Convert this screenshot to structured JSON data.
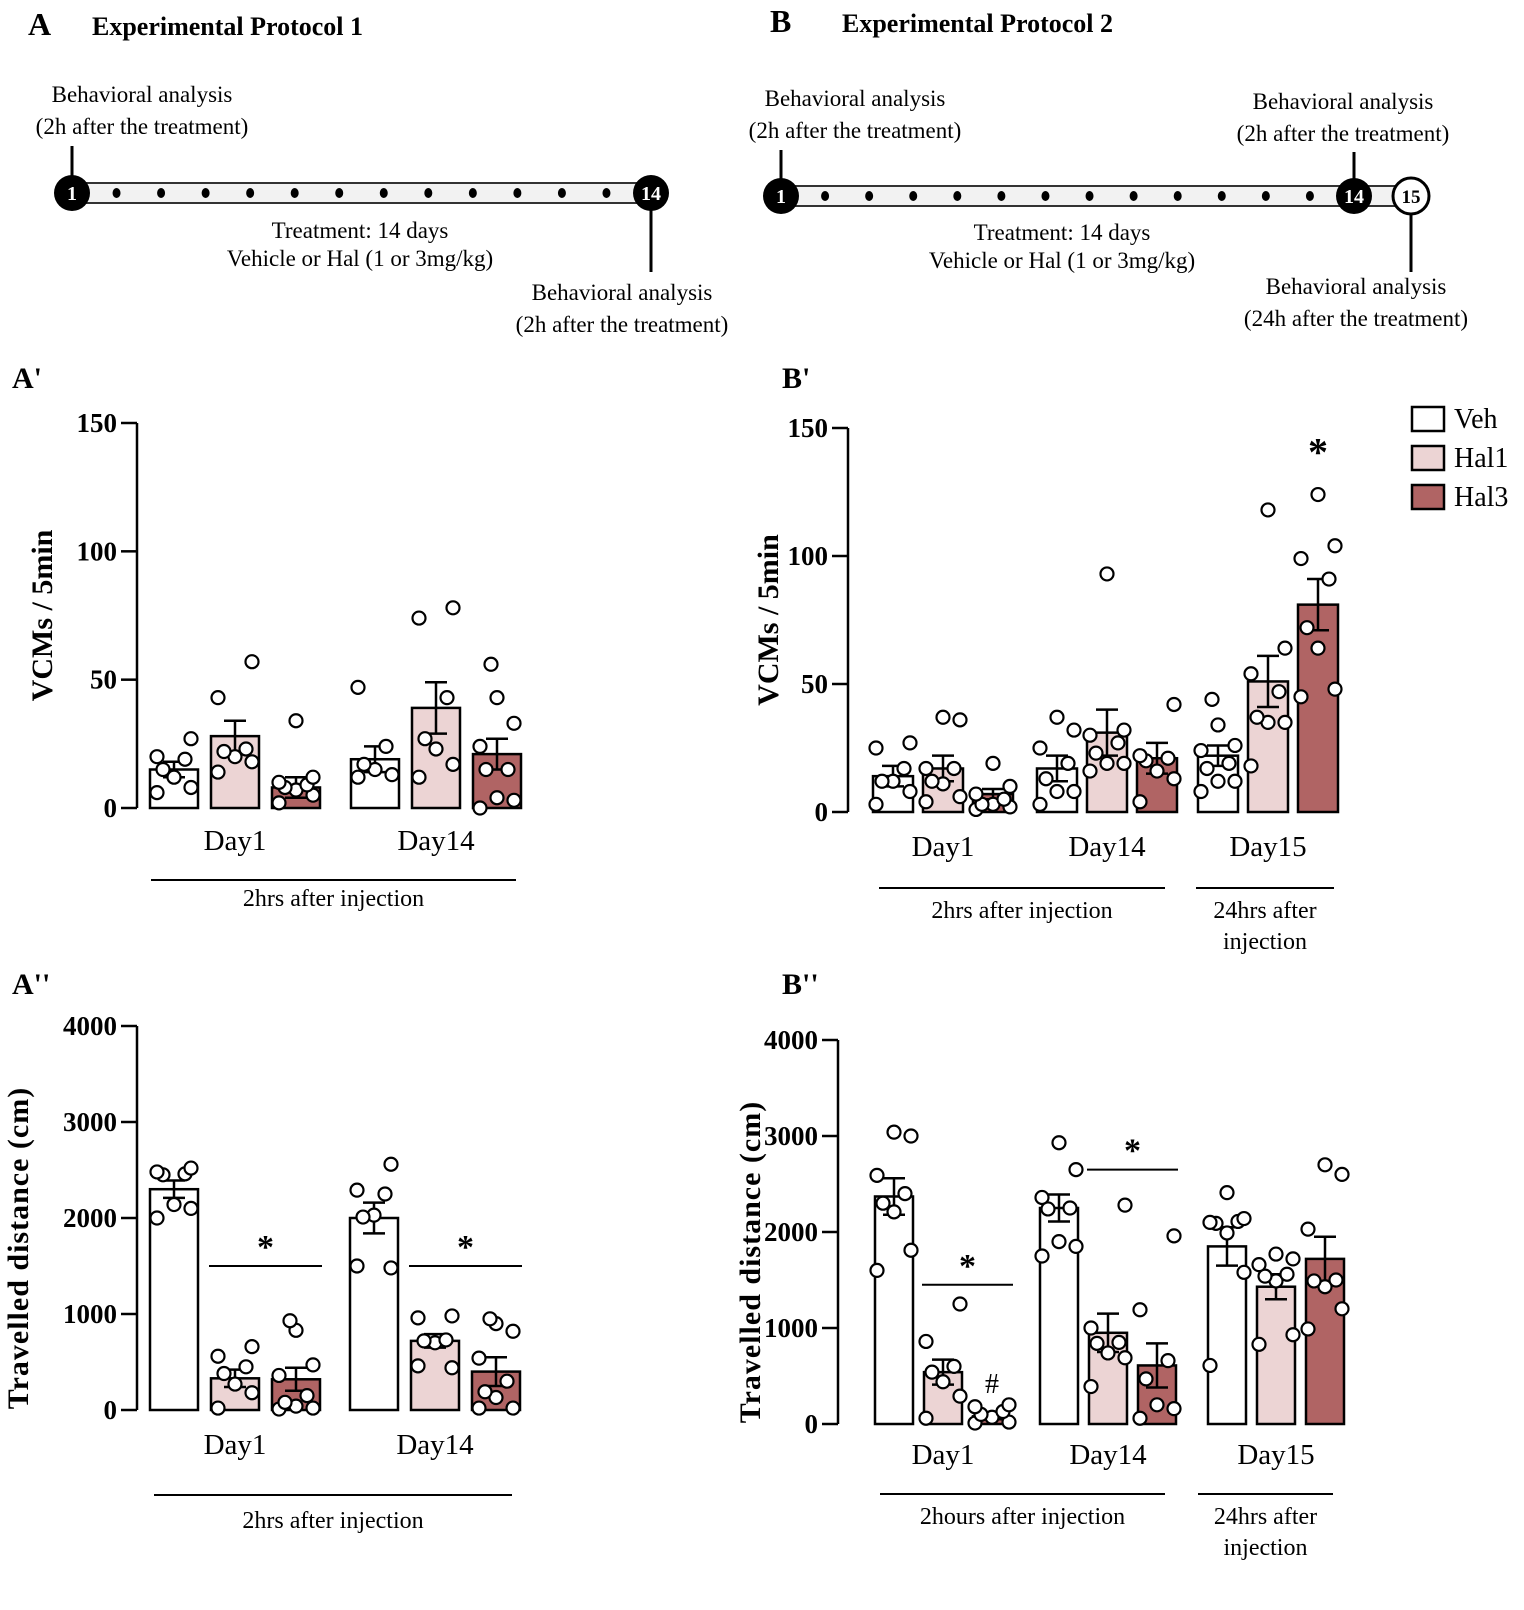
{
  "colors": {
    "veh": "#ffffff",
    "hal1": "#ecd4d4",
    "hal3": "#b06464",
    "stroke": "#000000",
    "timeline_bar": "#f2f2f2"
  },
  "protocols": [
    {
      "panel": "A",
      "title": "Experimental  Protocol 1",
      "start_day": "1",
      "end_day": "14",
      "extra_day": null,
      "intermediate_dots": 12,
      "treatment_line1": "Treatment: 14 days",
      "treatment_line2": "Vehicle or Hal  (1 or 3mg/kg)",
      "start_note": [
        "Behavioral analysis",
        "(2h after the treatment)"
      ],
      "end_note": [
        "Behavioral analysis",
        "(2h after the treatment)"
      ],
      "extra_note": null
    },
    {
      "panel": "B",
      "title": "Experimental  Protocol 2",
      "start_day": "1",
      "end_day": "14",
      "extra_day": "15",
      "intermediate_dots": 12,
      "treatment_line1": "Treatment: 14 days",
      "treatment_line2": "Vehicle or Hal  (1 or 3mg/kg)",
      "start_note": [
        "Behavioral analysis",
        "(2h after the treatment)"
      ],
      "end_note": [
        "Behavioral analysis",
        "(2h after the treatment)"
      ],
      "extra_note": [
        "Behavioral analysis",
        "(24h after the treatment)"
      ]
    }
  ],
  "legend": [
    {
      "key": "veh",
      "label": "Veh"
    },
    {
      "key": "hal1",
      "label": "Hal1"
    },
    {
      "key": "hal3",
      "label": "Hal3"
    }
  ],
  "chart_data": [
    {
      "panel": "A'",
      "type": "bar",
      "title": "",
      "ylabel": "VCMs / 5min",
      "xlabel": "",
      "ylim": [
        0,
        150
      ],
      "yticks": [
        0,
        50,
        100,
        150
      ],
      "categories": [
        "Day1",
        "Day14"
      ],
      "group_labels": [
        {
          "text": [
            "2hrs after injection"
          ],
          "span": [
            0,
            1
          ]
        }
      ],
      "series": [
        {
          "name": "Veh",
          "key": "veh",
          "values": [
            15,
            19
          ],
          "sem": [
            3,
            5
          ],
          "points": [
            [
              6,
              8,
              12,
              15,
              19,
              20,
              27
            ],
            [
              12,
              13,
              15,
              17,
              24,
              47
            ]
          ]
        },
        {
          "name": "Hal1",
          "key": "hal1",
          "values": [
            28,
            39
          ],
          "sem": [
            6,
            10
          ],
          "points": [
            [
              14,
              18,
              20,
              22,
              23,
              43,
              57
            ],
            [
              12,
              17,
              23,
              27,
              43,
              74,
              78
            ]
          ]
        },
        {
          "name": "Hal3",
          "key": "hal3",
          "values": [
            8,
            21
          ],
          "sem": [
            4,
            6
          ],
          "points": [
            [
              2,
              5,
              7,
              8,
              9,
              10,
              12,
              34
            ],
            [
              0,
              3,
              4,
              15,
              15,
              24,
              33,
              43,
              56
            ]
          ]
        }
      ],
      "annotations": []
    },
    {
      "panel": "B'",
      "type": "bar",
      "title": "",
      "ylabel": "VCMs / 5min",
      "xlabel": "",
      "ylim": [
        0,
        150
      ],
      "yticks": [
        0,
        50,
        100,
        150
      ],
      "categories": [
        "Day1",
        "Day14",
        "Day15"
      ],
      "group_labels": [
        {
          "text": [
            "2hrs after injection"
          ],
          "span": [
            0,
            1
          ]
        },
        {
          "text": [
            "24hrs after",
            "injection"
          ],
          "span": [
            2,
            2
          ]
        }
      ],
      "series": [
        {
          "name": "Veh",
          "key": "veh",
          "values": [
            14,
            17,
            22
          ],
          "sem": [
            4,
            5,
            4
          ],
          "points": [
            [
              3,
              8,
              12,
              12,
              17,
              25,
              27
            ],
            [
              3,
              8,
              8,
              13,
              19,
              25,
              32,
              37
            ],
            [
              8,
              12,
              12,
              17,
              19,
              24,
              26,
              34,
              44
            ]
          ]
        },
        {
          "name": "Hal1",
          "key": "hal1",
          "values": [
            17,
            31,
            51
          ],
          "sem": [
            5,
            9,
            10
          ],
          "points": [
            [
              4,
              6,
              11,
              12,
              17,
              17,
              36,
              37
            ],
            [
              16,
              19,
              19,
              23,
              27,
              30,
              32,
              93
            ],
            [
              18,
              35,
              35,
              37,
              47,
              54,
              64,
              118
            ]
          ]
        },
        {
          "name": "Hal3",
          "key": "hal3",
          "values": [
            7,
            21,
            81
          ],
          "sem": [
            2,
            6,
            10
          ],
          "points": [
            [
              1,
              2,
              3,
              3,
              5,
              7,
              10,
              19
            ],
            [
              4,
              13,
              16,
              20,
              21,
              22,
              42
            ],
            [
              45,
              48,
              64,
              72,
              91,
              99,
              104,
              124
            ]
          ]
        }
      ],
      "annotations": [
        {
          "text": "*",
          "category": 2,
          "series": 2,
          "y": 140
        }
      ]
    },
    {
      "panel": "A''",
      "type": "bar",
      "title": "",
      "ylabel": "Travelled distance (cm)",
      "xlabel": "",
      "ylim": [
        0,
        4000
      ],
      "yticks": [
        0,
        1000,
        2000,
        3000,
        4000
      ],
      "categories": [
        "Day1",
        "Day14"
      ],
      "group_labels": [
        {
          "text": [
            "2hrs after injection"
          ],
          "span": [
            0,
            1
          ]
        }
      ],
      "series": [
        {
          "name": "Veh",
          "key": "veh",
          "values": [
            2300,
            2000
          ],
          "sem": [
            90,
            160
          ],
          "points": [
            [
              2000,
              2100,
              2140,
              2450,
              2460,
              2480,
              2520
            ],
            [
              1500,
              1480,
              2030,
              2010,
              2250,
              2290,
              2560
            ]
          ]
        },
        {
          "name": "Hal1",
          "key": "hal1",
          "values": [
            330,
            720
          ],
          "sem": [
            90,
            70
          ],
          "points": [
            [
              20,
              180,
              270,
              380,
              450,
              560,
              660
            ],
            [
              460,
              440,
              700,
              720,
              730,
              960,
              980
            ]
          ]
        },
        {
          "name": "Hal3",
          "key": "hal3",
          "values": [
            320,
            400
          ],
          "sem": [
            120,
            150
          ],
          "points": [
            [
              10,
              20,
              40,
              80,
              150,
              360,
              470,
              830,
              930
            ],
            [
              20,
              20,
              130,
              190,
              300,
              540,
              820,
              900,
              950
            ]
          ]
        }
      ],
      "annotations": [
        {
          "text": "*",
          "span": [
            [
              0,
              1
            ],
            [
              0,
              2
            ]
          ],
          "y": 1500
        },
        {
          "text": "*",
          "span": [
            [
              1,
              1
            ],
            [
              1,
              2
            ]
          ],
          "y": 1500
        }
      ]
    },
    {
      "panel": "B''",
      "type": "bar",
      "title": "",
      "ylabel": "Travelled distance (cm)",
      "xlabel": "",
      "ylim": [
        0,
        4000
      ],
      "yticks": [
        0,
        1000,
        2000,
        3000,
        4000
      ],
      "categories": [
        "Day1",
        "Day14",
        "Day15"
      ],
      "group_labels": [
        {
          "text": [
            "2hours after injection"
          ],
          "span": [
            0,
            1
          ]
        },
        {
          "text": [
            "24hrs after",
            "injection"
          ],
          "span": [
            2,
            2
          ]
        }
      ],
      "series": [
        {
          "name": "Veh",
          "key": "veh",
          "values": [
            2370,
            2250
          ],
          "sem": [
            190,
            140
          ],
          "points": [
            [
              1600,
              1810,
              2210,
              2300,
              2400,
              2590,
              3000,
              3040
            ],
            [
              1750,
              1850,
              1900,
              2240,
              2250,
              2360,
              2650,
              2930
            ]
          ]
        },
        {
          "name": "Hal1",
          "key": "hal1",
          "values": [
            540,
            950
          ],
          "sem": [
            130,
            200
          ],
          "points": [
            [
              60,
              290,
              440,
              540,
              600,
              860,
              1250
            ],
            [
              390,
              690,
              740,
              840,
              850,
              1000,
              2280
            ]
          ]
        },
        {
          "name": "Hal3",
          "key": "hal3",
          "values": [
            80,
            610
          ],
          "sem": [
            30,
            230
          ],
          "points": [
            [
              10,
              20,
              70,
              100,
              130,
              180,
              200
            ],
            [
              60,
              160,
              200,
              470,
              660,
              1190,
              1960
            ]
          ]
        }
      ],
      "series_day15": [
        {
          "name": "Veh",
          "key": "veh",
          "values": [
            1850
          ],
          "sem": [
            200
          ],
          "points": [
            [
              610,
              1580,
              1990,
              2090,
              2110,
              2100,
              2140,
              2410
            ]
          ]
        },
        {
          "name": "Hal1",
          "key": "hal1",
          "values": [
            1430
          ],
          "sem": [
            130
          ],
          "points": [
            [
              830,
              930,
              1490,
              1540,
              1560,
              1660,
              1720,
              1770
            ]
          ]
        },
        {
          "name": "Hal3",
          "key": "hal3",
          "values": [
            1720
          ],
          "sem": [
            230
          ],
          "points": [
            [
              990,
              1200,
              1430,
              1490,
              1500,
              2030,
              2600,
              2700
            ]
          ]
        }
      ],
      "annotations": [
        {
          "text": "*",
          "span": [
            [
              0,
              1
            ],
            [
              0,
              2
            ]
          ],
          "y": 1450
        },
        {
          "text": "#",
          "category": 0,
          "series": 2,
          "y": 450
        },
        {
          "text": "*",
          "span": [
            [
              1,
              1
            ],
            [
              1,
              2
            ]
          ],
          "y": 2650
        }
      ]
    }
  ]
}
